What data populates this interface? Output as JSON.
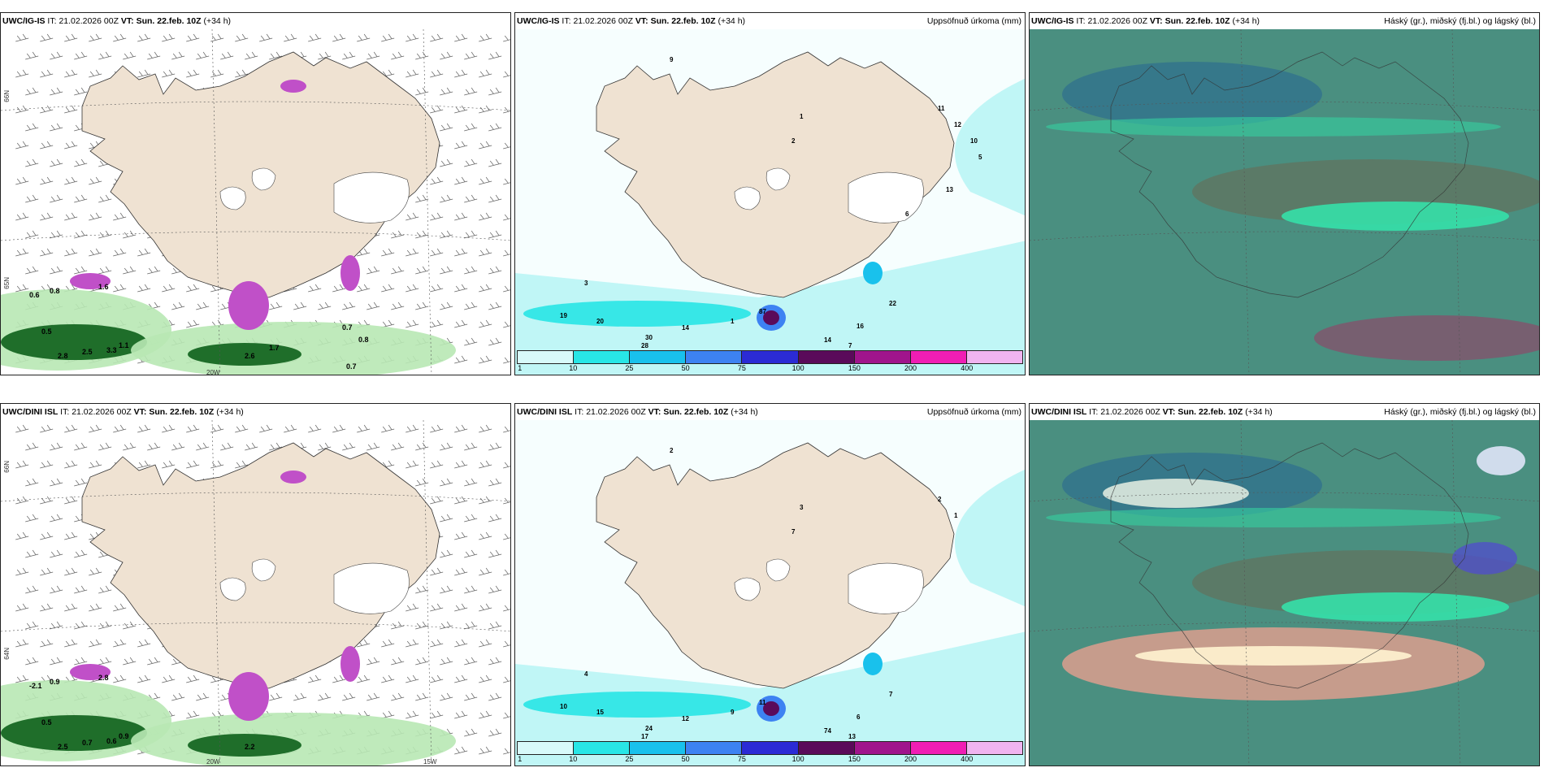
{
  "rows": [
    {
      "model": "UWC/IG-IS",
      "it_label": "IT:",
      "it_value": "21.02.2026 00Z",
      "vt_label": "VT:",
      "vt_value": "Sun. 22.feb. 10Z",
      "lead": "(+34 h)",
      "lat_label": "66N",
      "lat_label2": "65N",
      "lon_label": "20W",
      "wind_values": [
        "0.6",
        "0.8",
        "0.5",
        "1.6",
        "2.8",
        "2.5",
        "3.3",
        "1.1",
        "2.6",
        "1.7",
        "0.7",
        "0.8",
        "0.7"
      ],
      "precip_values": [
        "9",
        "1",
        "2",
        "3",
        "19",
        "20",
        "30",
        "28",
        "14",
        "87",
        "1",
        "22",
        "16",
        "14",
        "7",
        "8",
        "9",
        "11",
        "12",
        "10",
        "5",
        "13",
        "6"
      ]
    },
    {
      "model": "UWC/DINI ISL",
      "it_label": "IT:",
      "it_value": "21.02.2026 00Z",
      "vt_label": "VT:",
      "vt_value": "Sun. 22.feb. 10Z",
      "lead": "(+34 h)",
      "lat_label": "66N",
      "lat_label2": "64N",
      "lon_label": "20W",
      "lon_label2": "15W",
      "wind_values": [
        "-2.1",
        "0.9",
        "0.5",
        "2.8",
        "2.5",
        "0.7",
        "0.6",
        "0.9",
        "2.2"
      ],
      "precip_values": [
        "2",
        "3",
        "7",
        "4",
        "10",
        "15",
        "24",
        "17",
        "12",
        "11",
        "9",
        "7",
        "6",
        "74",
        "13",
        "17",
        "3",
        "2",
        "1"
      ]
    }
  ],
  "precip_title": "Uppsöfnuð úrkoma (mm)",
  "cloud_title": "Háský (gr.), miðský (fj.bl.) og lágský (bl.)",
  "colorbar": {
    "ticks": [
      "1",
      "10",
      "25",
      "50",
      "75",
      "100",
      "150",
      "200",
      "400"
    ],
    "colors": [
      "#d8fafa",
      "#28e6e6",
      "#19c1ec",
      "#3d82f2",
      "#2b2bd5",
      "#5a0a5a",
      "#a0148c",
      "#f01eb4",
      "#f0b4f0"
    ]
  },
  "colors": {
    "land": "#efe2d2",
    "precip_light": "#c0f6f6",
    "green_dark": "#1f6e2a",
    "green_light": "#b8e8b4",
    "magenta": "#c050c8",
    "cloud_bg": "#4a8f80"
  }
}
